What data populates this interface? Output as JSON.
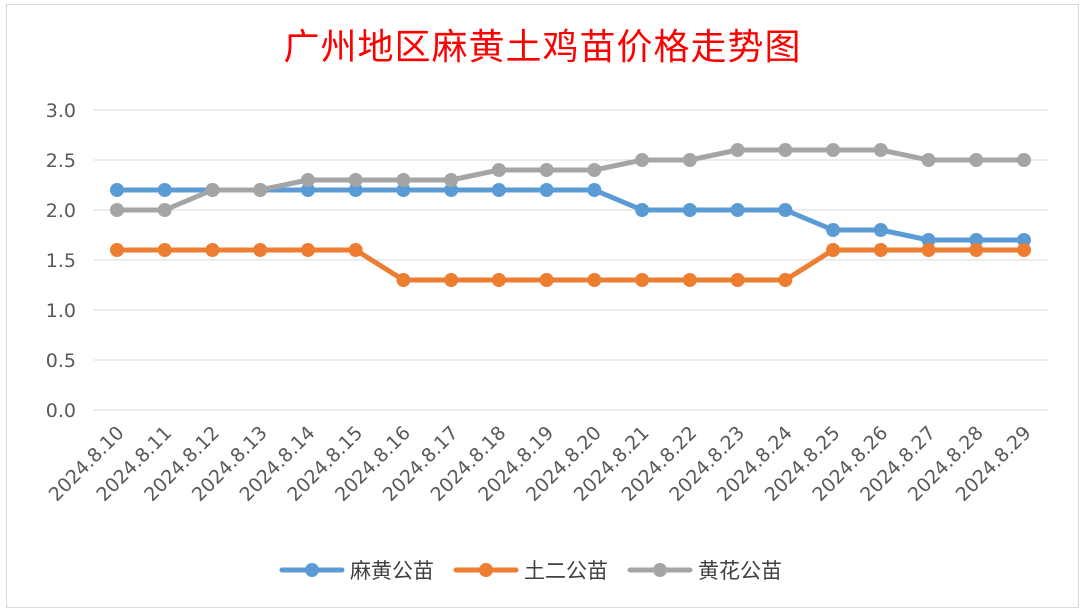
{
  "chart_data": {
    "type": "line",
    "title": "广州地区麻黄土鸡苗价格走势图",
    "xlabel": "",
    "ylabel": "",
    "ylim": [
      0,
      3.0
    ],
    "yticks": [
      "0.0",
      "0.5",
      "1.0",
      "1.5",
      "2.0",
      "2.5",
      "3.0"
    ],
    "grid": true,
    "legend_position": "bottom",
    "categories": [
      "2024.8.10",
      "2024.8.11",
      "2024.8.12",
      "2024.8.13",
      "2024.8.14",
      "2024.8.15",
      "2024.8.16",
      "2024.8.17",
      "2024.8.18",
      "2024.8.19",
      "2024.8.20",
      "2024.8.21",
      "2024.8.22",
      "2024.8.23",
      "2024.8.24",
      "2024.8.25",
      "2024.8.26",
      "2024.8.27",
      "2024.8.28",
      "2024.8.29"
    ],
    "series": [
      {
        "name": "麻黄公苗",
        "color": "#5b9bd5",
        "values": [
          2.2,
          2.2,
          2.2,
          2.2,
          2.2,
          2.2,
          2.2,
          2.2,
          2.2,
          2.2,
          2.2,
          2.0,
          2.0,
          2.0,
          2.0,
          1.8,
          1.8,
          1.7,
          1.7,
          1.7
        ]
      },
      {
        "name": "土二公苗",
        "color": "#ed7d31",
        "values": [
          1.6,
          1.6,
          1.6,
          1.6,
          1.6,
          1.6,
          1.3,
          1.3,
          1.3,
          1.3,
          1.3,
          1.3,
          1.3,
          1.3,
          1.3,
          1.6,
          1.6,
          1.6,
          1.6,
          1.6
        ]
      },
      {
        "name": "黄花公苗",
        "color": "#a5a5a5",
        "values": [
          2.0,
          2.0,
          2.2,
          2.2,
          2.3,
          2.3,
          2.3,
          2.3,
          2.4,
          2.4,
          2.4,
          2.5,
          2.5,
          2.6,
          2.6,
          2.6,
          2.6,
          2.5,
          2.5,
          2.5
        ]
      }
    ]
  }
}
